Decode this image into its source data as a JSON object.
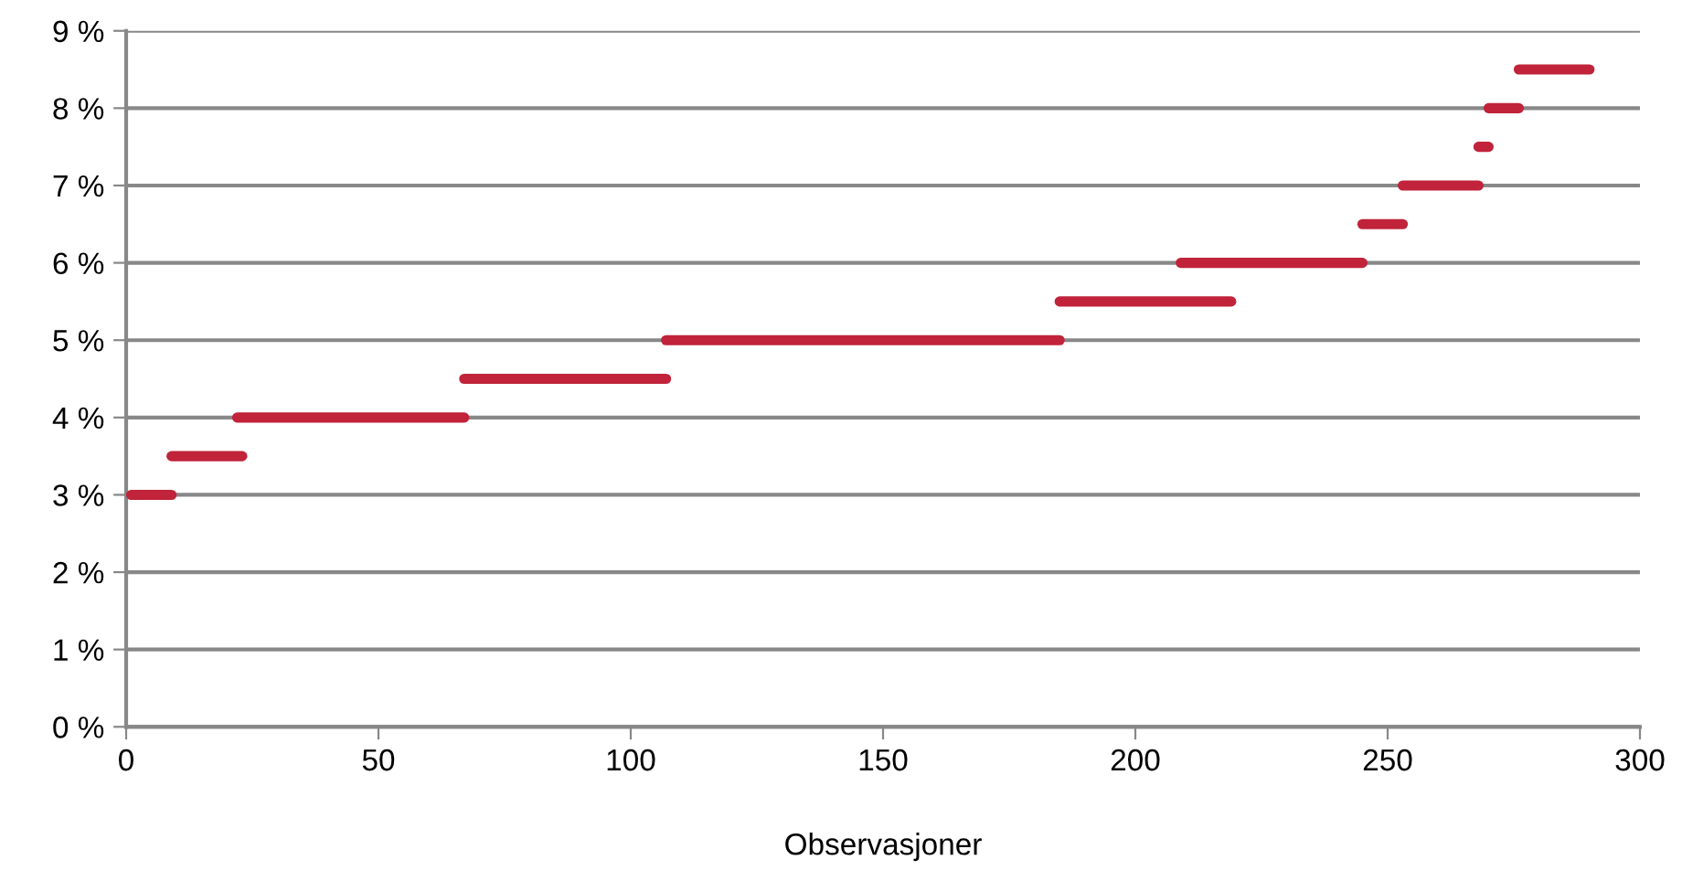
{
  "chart_data": {
    "type": "line",
    "xlabel": "Observasjoner",
    "xlim": [
      0,
      300
    ],
    "xticks": [
      0,
      50,
      100,
      150,
      200,
      250,
      300
    ],
    "ylim": [
      0,
      9
    ],
    "yticks": [
      {
        "value": 0,
        "label": "0 %"
      },
      {
        "value": 1,
        "label": "1 %"
      },
      {
        "value": 2,
        "label": "2 %"
      },
      {
        "value": 3,
        "label": "3 %"
      },
      {
        "value": 4,
        "label": "4 %"
      },
      {
        "value": 5,
        "label": "5 %"
      },
      {
        "value": 6,
        "label": "6 %"
      },
      {
        "value": 7,
        "label": "7 %"
      },
      {
        "value": 8,
        "label": "8 %"
      },
      {
        "value": 9,
        "label": "9 %"
      }
    ],
    "grid": "y",
    "marker": "none",
    "line_style": "solid",
    "series": [
      {
        "color": "#c0233a",
        "x": [
          1,
          9
        ],
        "values": [
          3,
          3
        ]
      },
      {
        "color": "#c0233a",
        "x": [
          9,
          23
        ],
        "values": [
          3.5,
          3.5
        ]
      },
      {
        "color": "#c0233a",
        "x": [
          22,
          67
        ],
        "values": [
          4,
          4
        ]
      },
      {
        "color": "#c0233a",
        "x": [
          67,
          107
        ],
        "values": [
          4.5,
          4.5
        ]
      },
      {
        "color": "#c0233a",
        "x": [
          107,
          185
        ],
        "values": [
          5,
          5
        ]
      },
      {
        "color": "#c0233a",
        "x": [
          185,
          219
        ],
        "values": [
          5.5,
          5.5
        ]
      },
      {
        "color": "#c0233a",
        "x": [
          209,
          245
        ],
        "values": [
          6,
          6
        ]
      },
      {
        "color": "#c0233a",
        "x": [
          245,
          253
        ],
        "values": [
          6.5,
          6.5
        ]
      },
      {
        "color": "#c0233a",
        "x": [
          253,
          268
        ],
        "values": [
          7,
          7
        ]
      },
      {
        "color": "#c0233a",
        "x": [
          268,
          270
        ],
        "values": [
          7.5,
          7.5
        ]
      },
      {
        "color": "#c0233a",
        "x": [
          270,
          276
        ],
        "values": [
          8,
          8
        ]
      },
      {
        "color": "#c0233a",
        "x": [
          276,
          290
        ],
        "values": [
          8.5,
          8.5
        ]
      }
    ]
  }
}
